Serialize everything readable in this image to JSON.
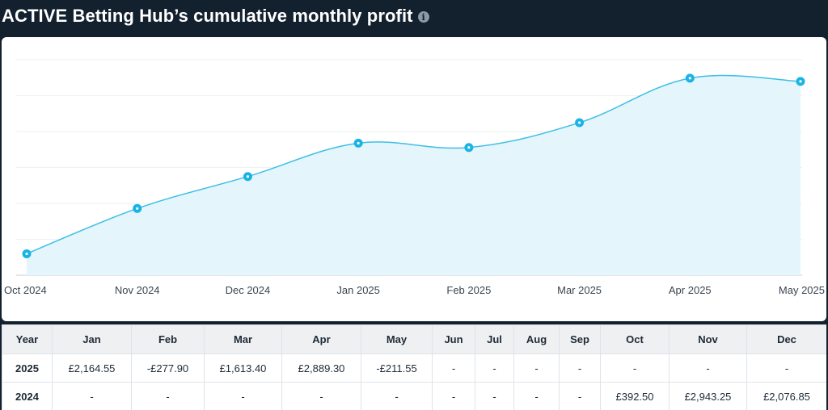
{
  "header": {
    "title": "ACTIVE Betting Hub’s cumulative monthly profit",
    "info_icon": "info-icon"
  },
  "chart_data": {
    "type": "area",
    "x": [
      "Oct 2024",
      "Nov 2024",
      "Dec 2024",
      "Jan 2025",
      "Feb 2025",
      "Mar 2025",
      "Apr 2025",
      "May 2025"
    ],
    "values": [
      392.5,
      3335.75,
      5412.6,
      7577.15,
      7299.25,
      8912.65,
      11801.95,
      11590.4
    ],
    "ylim": [
      -1000,
      13000
    ],
    "grid": true,
    "legend": "none",
    "line_color": "#3dbfe6",
    "fill_color": "#e4f5fb",
    "point_color": "#1ab3e6"
  },
  "table": {
    "headers": [
      "Year",
      "Jan",
      "Feb",
      "Mar",
      "Apr",
      "May",
      "Jun",
      "Jul",
      "Aug",
      "Sep",
      "Oct",
      "Nov",
      "Dec"
    ],
    "rows": [
      [
        "2025",
        "£2,164.55",
        "-£277.90",
        "£1,613.40",
        "£2,889.30",
        "-£211.55",
        "-",
        "-",
        "-",
        "-",
        "-",
        "-",
        "-"
      ],
      [
        "2024",
        "-",
        "-",
        "-",
        "-",
        "-",
        "-",
        "-",
        "-",
        "-",
        "£392.50",
        "£2,943.25",
        "£2,076.85"
      ]
    ]
  }
}
